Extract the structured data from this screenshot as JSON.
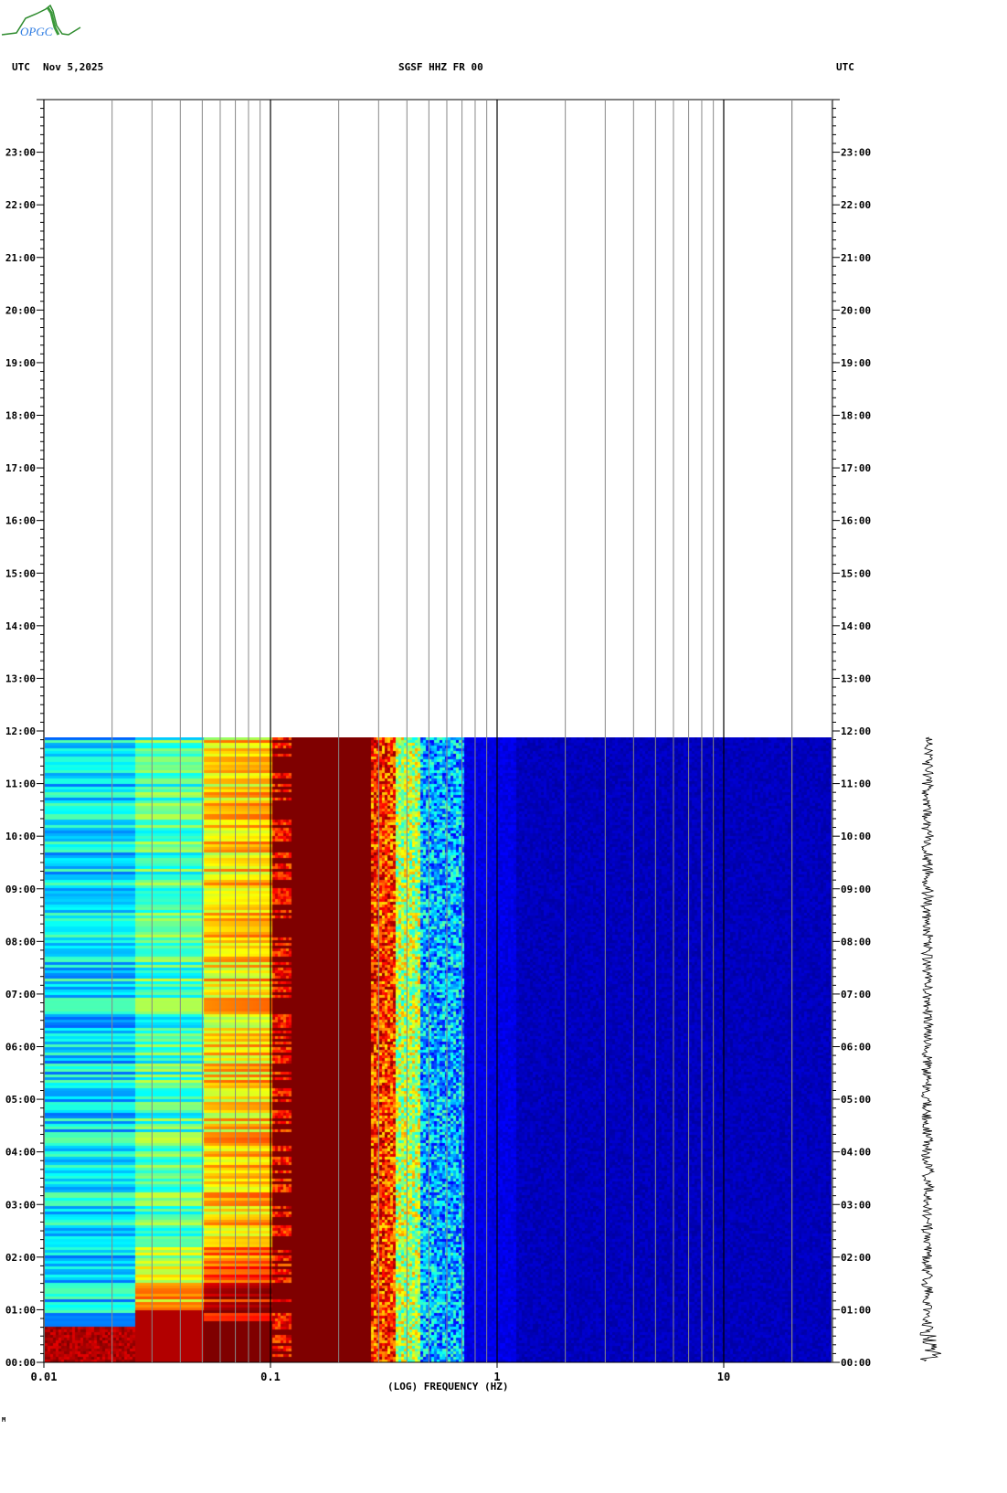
{
  "header": {
    "left_tz": "UTC",
    "date": "Nov 5,2025",
    "station": "SGSF HHZ FR 00",
    "right_tz": "UTC",
    "logo_text": "OPGC"
  },
  "footer_mark": "M",
  "chart_data": {
    "type": "heatmap",
    "title": "SGSF HHZ FR 00",
    "xlabel": "(LOG) FREQUENCY (HZ)",
    "ylabel": "UTC",
    "x_scale": "log",
    "xlim": [
      0.01,
      30
    ],
    "x_ticks": [
      "0.01",
      "0.1",
      "1",
      "10"
    ],
    "x_tick_values": [
      0.01,
      0.1,
      1,
      10
    ],
    "ylim_hours": [
      0,
      24
    ],
    "data_end_hour": 11.88,
    "y_ticks": [
      "00:00",
      "01:00",
      "02:00",
      "03:00",
      "04:00",
      "05:00",
      "06:00",
      "07:00",
      "08:00",
      "09:00",
      "10:00",
      "11:00",
      "12:00",
      "13:00",
      "14:00",
      "15:00",
      "16:00",
      "17:00",
      "18:00",
      "19:00",
      "20:00",
      "21:00",
      "22:00",
      "23:00"
    ],
    "colormap": "jet",
    "bands": [
      {
        "fmin": 0.01,
        "fmax": 0.025,
        "level": 0.35
      },
      {
        "fmin": 0.025,
        "fmax": 0.05,
        "level": 0.45
      },
      {
        "fmin": 0.05,
        "fmax": 0.1,
        "level": 0.55
      },
      {
        "fmin": 0.1,
        "fmax": 0.12,
        "level": 0.85
      },
      {
        "fmin": 0.12,
        "fmax": 0.27,
        "level": 1.0
      },
      {
        "fmin": 0.27,
        "fmax": 0.35,
        "level": 0.82
      },
      {
        "fmin": 0.35,
        "fmax": 0.45,
        "level": 0.55
      },
      {
        "fmin": 0.45,
        "fmax": 0.7,
        "level": 0.3
      },
      {
        "fmin": 0.7,
        "fmax": 1.2,
        "level": 0.1
      },
      {
        "fmin": 1.2,
        "fmax": 30,
        "level": 0.06
      }
    ]
  }
}
